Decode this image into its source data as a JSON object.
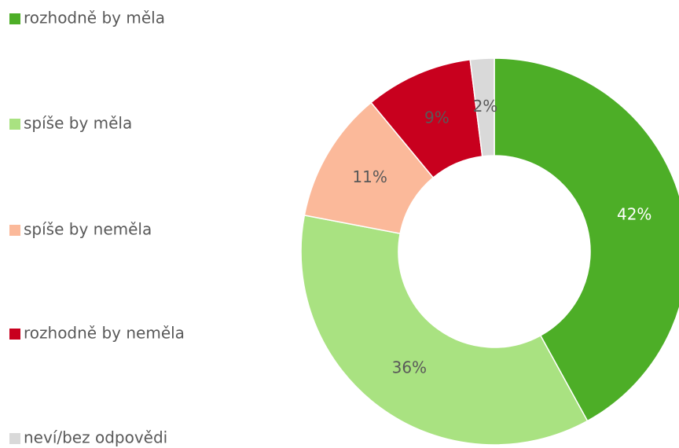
{
  "chart_data": {
    "type": "donut",
    "categories": [
      "rozhodně by měla",
      "spíše by měla",
      "spíše by neměla",
      "rozhodně by neměla",
      "neví/bez odpovědi"
    ],
    "values": [
      42,
      36,
      11,
      9,
      2
    ],
    "value_labels": [
      "42%",
      "36%",
      "11%",
      "9%",
      "2%"
    ],
    "colors": [
      "#4dae27",
      "#a9e281",
      "#fbb99a",
      "#c8001e",
      "#d9d9d9"
    ],
    "label_colors": [
      "#ffffff",
      "#595959",
      "#595959",
      "#595959",
      "#595959"
    ],
    "legend": "left"
  }
}
